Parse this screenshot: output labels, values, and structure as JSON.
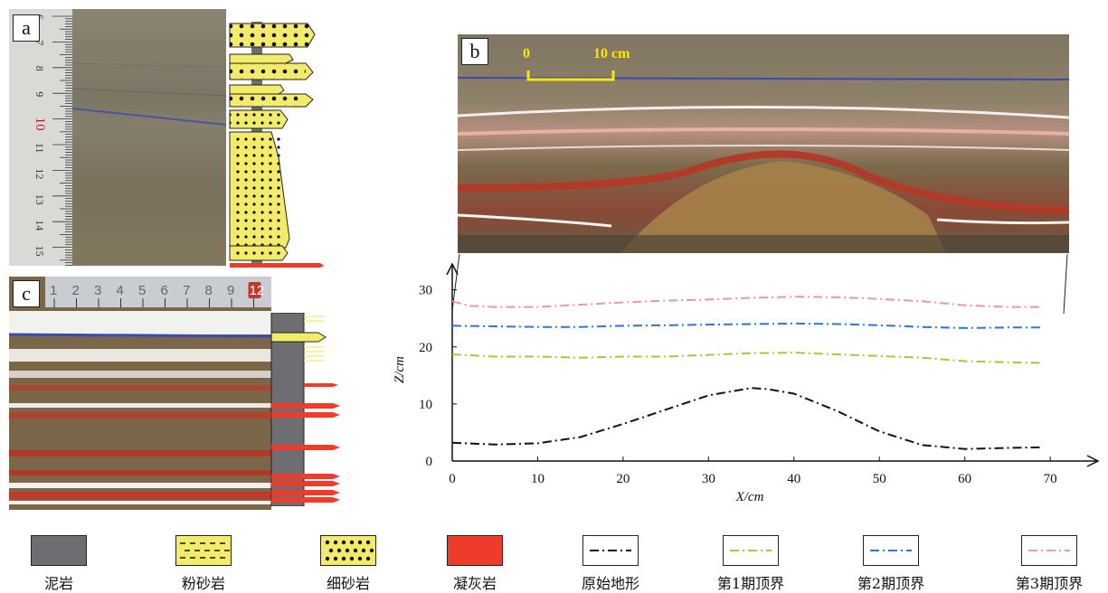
{
  "panels": {
    "a": {
      "label": "a",
      "ruler_ticks": [
        "6",
        "7",
        "8",
        "9",
        "10",
        "11",
        "12",
        "13",
        "14",
        "15"
      ]
    },
    "b": {
      "label": "b",
      "scale_start": "0",
      "scale_end": "10 cm"
    },
    "c": {
      "label": "c",
      "ruler_ticks": [
        "1",
        "2",
        "3",
        "4",
        "5",
        "6",
        "7",
        "8",
        "9",
        "12"
      ]
    }
  },
  "chart_data": {
    "type": "line",
    "xlabel": "X/cm",
    "ylabel": "Z/cm",
    "xlim": [
      0,
      72
    ],
    "ylim": [
      0,
      32
    ],
    "xticks": [
      0,
      10,
      20,
      30,
      40,
      50,
      60,
      70
    ],
    "yticks": [
      0,
      10,
      20,
      30
    ],
    "series": [
      {
        "name": "原始地形",
        "color": "#111111",
        "x": [
          0,
          5,
          10,
          15,
          20,
          25,
          30,
          35,
          37,
          40,
          45,
          50,
          55,
          60,
          65,
          69
        ],
        "y": [
          3.2,
          2.9,
          3.1,
          4.2,
          6.5,
          9.0,
          11.5,
          12.8,
          12.6,
          11.8,
          8.8,
          5.2,
          2.8,
          2.1,
          2.3,
          2.4
        ]
      },
      {
        "name": "第1期顶界",
        "color": "#a8c73a",
        "x": [
          0,
          5,
          10,
          15,
          20,
          25,
          30,
          35,
          40,
          45,
          50,
          55,
          60,
          65,
          69
        ],
        "y": [
          18.7,
          18.3,
          18.3,
          18.1,
          18.3,
          18.3,
          18.6,
          18.9,
          19.0,
          18.7,
          18.4,
          18.1,
          17.5,
          17.3,
          17.2
        ]
      },
      {
        "name": "第2期顶界",
        "color": "#2e78c4",
        "x": [
          0,
          5,
          10,
          15,
          20,
          25,
          30,
          35,
          40,
          45,
          50,
          55,
          60,
          65,
          69
        ],
        "y": [
          23.7,
          23.6,
          23.5,
          23.5,
          23.7,
          23.8,
          23.9,
          24.0,
          24.1,
          24.0,
          23.8,
          23.5,
          23.3,
          23.4,
          23.4
        ]
      },
      {
        "name": "第3期顶界",
        "color": "#e89a9a",
        "x": [
          0,
          2,
          5,
          10,
          15,
          20,
          25,
          30,
          35,
          40,
          45,
          50,
          55,
          60,
          65,
          69
        ],
        "y": [
          28.0,
          27.2,
          27.0,
          27.0,
          27.4,
          27.8,
          28.1,
          28.3,
          28.6,
          28.8,
          28.7,
          28.4,
          28.0,
          27.3,
          27.0,
          27.0
        ]
      }
    ]
  },
  "legend": [
    {
      "label": "泥岩",
      "kind": "fill",
      "color": "#6e6e72"
    },
    {
      "label": "粉砂岩",
      "kind": "dash-dot-fill",
      "color": "#f3ec6a"
    },
    {
      "label": "细砂岩",
      "kind": "dot-fill",
      "color": "#f3ec6a"
    },
    {
      "label": "凝灰岩",
      "kind": "fill",
      "color": "#ee3b2a"
    },
    {
      "label": "原始地形",
      "kind": "line",
      "color": "#111111"
    },
    {
      "label": "第1期顶界",
      "kind": "line",
      "color": "#a8c73a"
    },
    {
      "label": "第2期顶界",
      "kind": "line",
      "color": "#2e78c4"
    },
    {
      "label": "第3期顶界",
      "kind": "line",
      "color": "#e89a9a"
    }
  ]
}
